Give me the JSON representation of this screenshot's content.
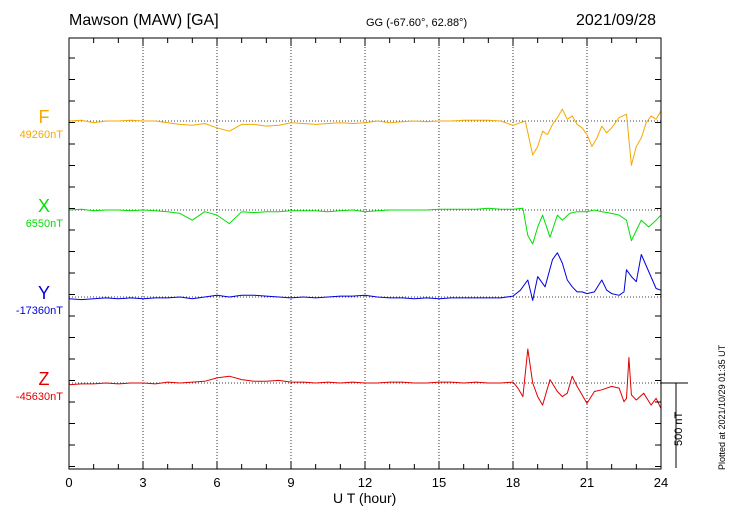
{
  "header": {
    "station": "Mawson (MAW)  [GA]",
    "coords": "GG (-67.60°,  62.88°)",
    "date": "2021/09/28"
  },
  "footer_note": "Plotted at 2021/10/29 01:35 UT",
  "chart_data": {
    "type": "line",
    "xlabel": "U T (hour)",
    "xlim": [
      0,
      24
    ],
    "xticks": [
      "0",
      "3",
      "6",
      "9",
      "12",
      "15",
      "18",
      "21",
      "24"
    ],
    "scale_bar": {
      "label": "500 nT",
      "value_nT": 500
    },
    "series": [
      {
        "name": "F",
        "baseline": "49260nT",
        "color": "#f5a800",
        "values": [
          [
            0,
            0
          ],
          [
            0.5,
            5
          ],
          [
            1,
            -10
          ],
          [
            1.5,
            0
          ],
          [
            2,
            0
          ],
          [
            2.5,
            5
          ],
          [
            3,
            0
          ],
          [
            3.5,
            0
          ],
          [
            4,
            -10
          ],
          [
            4.5,
            -20
          ],
          [
            5,
            -25
          ],
          [
            5.5,
            -15
          ],
          [
            6,
            -40
          ],
          [
            6.5,
            -60
          ],
          [
            7,
            -20
          ],
          [
            7.5,
            -20
          ],
          [
            8,
            -30
          ],
          [
            8.5,
            -25
          ],
          [
            9,
            -10
          ],
          [
            9.5,
            -15
          ],
          [
            10,
            -20
          ],
          [
            10.5,
            -15
          ],
          [
            11,
            -10
          ],
          [
            11.5,
            -15
          ],
          [
            12,
            -10
          ],
          [
            12.5,
            0
          ],
          [
            13,
            -10
          ],
          [
            13.5,
            -5
          ],
          [
            14,
            0
          ],
          [
            14.5,
            -5
          ],
          [
            15,
            0
          ],
          [
            15.5,
            0
          ],
          [
            16,
            5
          ],
          [
            16.5,
            5
          ],
          [
            17,
            5
          ],
          [
            17.5,
            0
          ],
          [
            18,
            -25
          ],
          [
            18.3,
            -10
          ],
          [
            18.5,
            0
          ],
          [
            18.8,
            -200
          ],
          [
            19,
            -150
          ],
          [
            19.2,
            -60
          ],
          [
            19.4,
            -80
          ],
          [
            19.6,
            -20
          ],
          [
            19.8,
            20
          ],
          [
            20,
            70
          ],
          [
            20.2,
            10
          ],
          [
            20.4,
            30
          ],
          [
            20.6,
            -20
          ],
          [
            20.8,
            -40
          ],
          [
            21,
            -80
          ],
          [
            21.2,
            -150
          ],
          [
            21.4,
            -100
          ],
          [
            21.6,
            -30
          ],
          [
            21.8,
            -70
          ],
          [
            22,
            -40
          ],
          [
            22.3,
            20
          ],
          [
            22.6,
            40
          ],
          [
            22.8,
            -260
          ],
          [
            23,
            -150
          ],
          [
            23.2,
            -100
          ],
          [
            23.4,
            -10
          ],
          [
            23.6,
            30
          ],
          [
            23.8,
            10
          ],
          [
            24,
            60
          ]
        ]
      },
      {
        "name": "X",
        "baseline": "6550nT",
        "color": "#00e000",
        "values": [
          [
            0,
            0
          ],
          [
            0.5,
            5
          ],
          [
            1,
            -5
          ],
          [
            1.5,
            0
          ],
          [
            2,
            0
          ],
          [
            2.5,
            -5
          ],
          [
            3,
            0
          ],
          [
            3.5,
            -5
          ],
          [
            4,
            -10
          ],
          [
            4.5,
            -20
          ],
          [
            5,
            -60
          ],
          [
            5.5,
            -10
          ],
          [
            6,
            -30
          ],
          [
            6.5,
            -80
          ],
          [
            7,
            -10
          ],
          [
            7.5,
            -15
          ],
          [
            8,
            -10
          ],
          [
            8.5,
            -10
          ],
          [
            9,
            -5
          ],
          [
            9.5,
            -5
          ],
          [
            10,
            -5
          ],
          [
            10.5,
            -10
          ],
          [
            11,
            -5
          ],
          [
            11.5,
            0
          ],
          [
            12,
            -10
          ],
          [
            12.5,
            -5
          ],
          [
            13,
            0
          ],
          [
            13.5,
            0
          ],
          [
            14,
            0
          ],
          [
            14.5,
            0
          ],
          [
            15,
            5
          ],
          [
            15.5,
            5
          ],
          [
            16,
            5
          ],
          [
            16.5,
            5
          ],
          [
            17,
            10
          ],
          [
            17.5,
            5
          ],
          [
            18,
            5
          ],
          [
            18.4,
            10
          ],
          [
            18.6,
            -150
          ],
          [
            18.8,
            -200
          ],
          [
            19,
            -100
          ],
          [
            19.2,
            -30
          ],
          [
            19.5,
            -160
          ],
          [
            19.8,
            -30
          ],
          [
            20,
            -60
          ],
          [
            20.3,
            -20
          ],
          [
            20.6,
            -10
          ],
          [
            21,
            -10
          ],
          [
            21.3,
            0
          ],
          [
            21.6,
            -10
          ],
          [
            22,
            -20
          ],
          [
            22.3,
            -30
          ],
          [
            22.6,
            -60
          ],
          [
            22.8,
            -180
          ],
          [
            23,
            -120
          ],
          [
            23.2,
            -60
          ],
          [
            23.5,
            -100
          ],
          [
            23.8,
            -60
          ],
          [
            24,
            -30
          ]
        ]
      },
      {
        "name": "Y",
        "baseline": "-17360nT",
        "color": "#0000e0",
        "values": [
          [
            0,
            -10
          ],
          [
            0.5,
            -15
          ],
          [
            1,
            -10
          ],
          [
            1.5,
            -5
          ],
          [
            2,
            -10
          ],
          [
            2.5,
            -5
          ],
          [
            3,
            -10
          ],
          [
            3.5,
            -5
          ],
          [
            4,
            -5
          ],
          [
            4.5,
            0
          ],
          [
            5,
            -10
          ],
          [
            5.5,
            0
          ],
          [
            6,
            10
          ],
          [
            6.5,
            0
          ],
          [
            7,
            10
          ],
          [
            7.5,
            10
          ],
          [
            8,
            5
          ],
          [
            8.5,
            0
          ],
          [
            9,
            -5
          ],
          [
            9.5,
            0
          ],
          [
            10,
            -5
          ],
          [
            10.5,
            0
          ],
          [
            11,
            5
          ],
          [
            11.5,
            5
          ],
          [
            12,
            10
          ],
          [
            12.5,
            0
          ],
          [
            13,
            -5
          ],
          [
            13.5,
            -5
          ],
          [
            14,
            -10
          ],
          [
            14.5,
            -5
          ],
          [
            15,
            -10
          ],
          [
            15.5,
            -5
          ],
          [
            16,
            -5
          ],
          [
            16.5,
            -5
          ],
          [
            17,
            -5
          ],
          [
            17.5,
            -5
          ],
          [
            18,
            5
          ],
          [
            18.3,
            40
          ],
          [
            18.6,
            100
          ],
          [
            18.8,
            -20
          ],
          [
            19,
            120
          ],
          [
            19.3,
            60
          ],
          [
            19.6,
            220
          ],
          [
            19.8,
            260
          ],
          [
            20,
            200
          ],
          [
            20.2,
            100
          ],
          [
            20.4,
            60
          ],
          [
            20.6,
            30
          ],
          [
            20.8,
            30
          ],
          [
            21,
            20
          ],
          [
            21.3,
            30
          ],
          [
            21.6,
            100
          ],
          [
            21.8,
            40
          ],
          [
            22,
            20
          ],
          [
            22.3,
            10
          ],
          [
            22.5,
            30
          ],
          [
            22.6,
            160
          ],
          [
            22.8,
            120
          ],
          [
            23,
            90
          ],
          [
            23.2,
            250
          ],
          [
            23.5,
            150
          ],
          [
            23.8,
            50
          ],
          [
            24,
            40
          ]
        ]
      },
      {
        "name": "Z",
        "baseline": "-45630nT",
        "color": "#e00000",
        "values": [
          [
            0,
            -10
          ],
          [
            0.5,
            -5
          ],
          [
            1,
            -5
          ],
          [
            1.5,
            0
          ],
          [
            2,
            -5
          ],
          [
            2.5,
            0
          ],
          [
            3,
            0
          ],
          [
            3.5,
            -5
          ],
          [
            4,
            5
          ],
          [
            4.5,
            0
          ],
          [
            5,
            5
          ],
          [
            5.5,
            10
          ],
          [
            6,
            30
          ],
          [
            6.5,
            40
          ],
          [
            7,
            20
          ],
          [
            7.5,
            10
          ],
          [
            8,
            10
          ],
          [
            8.5,
            15
          ],
          [
            9,
            5
          ],
          [
            9.5,
            5
          ],
          [
            10,
            0
          ],
          [
            10.5,
            5
          ],
          [
            11,
            0
          ],
          [
            11.5,
            5
          ],
          [
            12,
            0
          ],
          [
            12.5,
            0
          ],
          [
            13,
            5
          ],
          [
            13.5,
            5
          ],
          [
            14,
            0
          ],
          [
            14.5,
            0
          ],
          [
            15,
            5
          ],
          [
            15.5,
            5
          ],
          [
            16,
            0
          ],
          [
            16.5,
            5
          ],
          [
            17,
            0
          ],
          [
            17.5,
            0
          ],
          [
            18,
            5
          ],
          [
            18.2,
            -30
          ],
          [
            18.4,
            -80
          ],
          [
            18.6,
            200
          ],
          [
            18.8,
            0
          ],
          [
            19,
            -80
          ],
          [
            19.2,
            -130
          ],
          [
            19.5,
            20
          ],
          [
            19.8,
            -50
          ],
          [
            20,
            -80
          ],
          [
            20.2,
            -60
          ],
          [
            20.4,
            40
          ],
          [
            20.6,
            -20
          ],
          [
            20.8,
            -70
          ],
          [
            21,
            -120
          ],
          [
            21.3,
            -50
          ],
          [
            21.6,
            -40
          ],
          [
            22,
            -20
          ],
          [
            22.3,
            -30
          ],
          [
            22.5,
            -110
          ],
          [
            22.6,
            -90
          ],
          [
            22.7,
            150
          ],
          [
            22.8,
            -70
          ],
          [
            23,
            -100
          ],
          [
            23.3,
            -60
          ],
          [
            23.6,
            -130
          ],
          [
            23.8,
            -90
          ],
          [
            24,
            -150
          ]
        ]
      }
    ]
  }
}
